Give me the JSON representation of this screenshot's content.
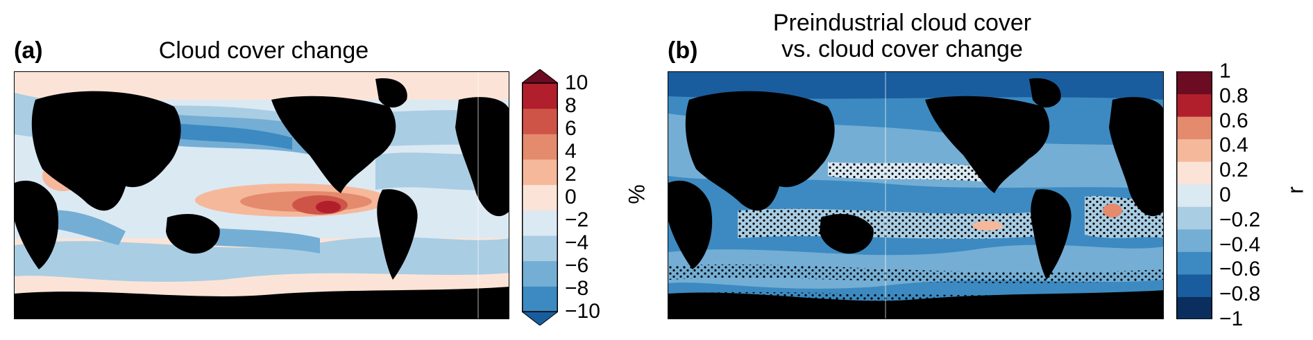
{
  "panel_a": {
    "label": "(a)",
    "title": "Cloud cover change",
    "colorbar": {
      "unit": "%",
      "ticks": [
        "10",
        "8",
        "6",
        "4",
        "2",
        "0",
        "−2",
        "−4",
        "−6",
        "−8",
        "−10"
      ],
      "range": [
        -10,
        10
      ],
      "extend": "both",
      "colors": [
        "#1a5d9e",
        "#3c8ac1",
        "#74aed4",
        "#a9cde3",
        "#dbe9f3",
        "#fbe4d7",
        "#f6b89b",
        "#e48a6d",
        "#cf5448",
        "#b11f2c",
        "#6b0c22"
      ]
    }
  },
  "panel_b": {
    "label": "(b)",
    "title_line1": "Preindustrial cloud cover",
    "title_line2": "vs. cloud cover change",
    "colorbar": {
      "unit": "r",
      "ticks": [
        "1",
        "0.8",
        "0.6",
        "0.4",
        "0.2",
        "0",
        "−0.2",
        "−0.4",
        "−0.6",
        "−0.8",
        "−1"
      ],
      "range": [
        -1,
        1
      ],
      "colors": [
        "#0a2f5e",
        "#1a5d9e",
        "#3c8ac1",
        "#74aed4",
        "#a9cde3",
        "#dbe9f3",
        "#fbe4d7",
        "#f6b89b",
        "#e48a6d",
        "#b11f2c",
        "#6b0c22"
      ]
    },
    "stippling": "dots"
  }
}
